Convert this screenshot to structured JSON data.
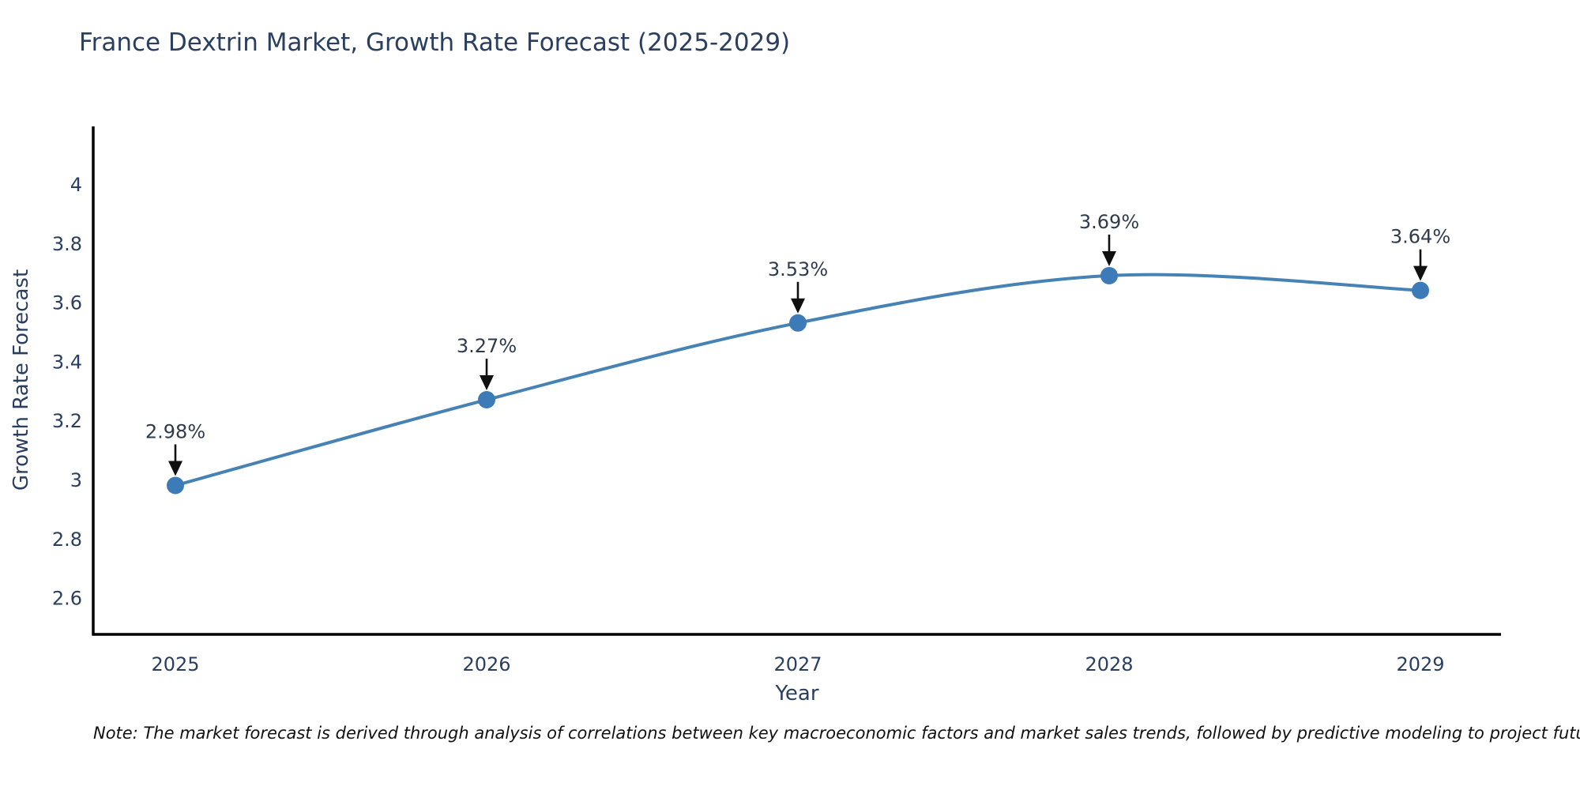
{
  "title": "France Dextrin Market, Growth Rate Forecast (2025-2029)",
  "note": "Note: The market forecast is derived through analysis of correlations between key macroeconomic factors and market sales trends, followed by predictive modeling to project future sales",
  "chart_data": {
    "type": "line",
    "title": "France Dextrin Market, Growth Rate Forecast (2025-2029)",
    "xlabel": "Year",
    "ylabel": "Growth Rate Forecast",
    "categories": [
      "2025",
      "2026",
      "2027",
      "2028",
      "2029"
    ],
    "series": [
      {
        "name": "Growth Rate Forecast",
        "values": [
          2.98,
          3.27,
          3.53,
          3.69,
          3.64
        ],
        "point_labels": [
          "2.98%",
          "3.27%",
          "3.53%",
          "3.69%",
          "3.64%"
        ]
      }
    ],
    "ytick_labels": [
      "2.6",
      "2.8",
      "3",
      "3.2",
      "3.4",
      "3.6",
      "3.8",
      "4"
    ],
    "ytick_values": [
      2.6,
      2.8,
      3.0,
      3.2,
      3.4,
      3.6,
      3.8,
      4.0
    ],
    "ylim": [
      2.47,
      4.19
    ],
    "line_shape": "spline",
    "grid": false,
    "legend": "none",
    "colors": {
      "line": "#4682b4",
      "marker": "#3c7ab8",
      "text": "#2a3f5f",
      "annotation_text": "#2f3b4c",
      "arrow": "#101010",
      "axis": "#000000"
    }
  }
}
